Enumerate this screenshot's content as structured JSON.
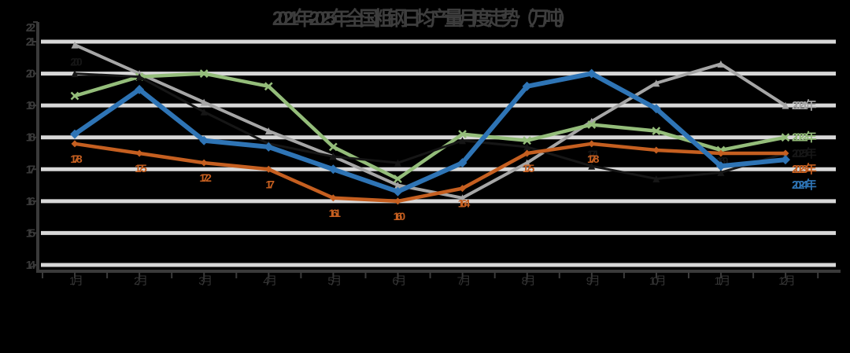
{
  "title": "2021年-2025年全国粗钢日均产量月度走势（万吨）",
  "background": "#000000",
  "axis_color": "#3a3a3a",
  "grid_color": "#d8d8d8",
  "y_axis": {
    "ticks": [
      "2.2",
      "2.1",
      "2.0",
      "1.9",
      "1.8",
      "1.7",
      "1.6",
      "1.5",
      "1.4"
    ]
  },
  "x_axis": {
    "labels": [
      "1月",
      "2月",
      "3月",
      "4月",
      "5月",
      "6月",
      "7月",
      "8月",
      "9月",
      "10月",
      "11月",
      "12月"
    ]
  },
  "chart_data": {
    "type": "line",
    "categories": [
      "1月",
      "2月",
      "3月",
      "4月",
      "5月",
      "6月",
      "7月",
      "8月",
      "9月",
      "10月",
      "11月",
      "12月"
    ],
    "title": "2021年-2025年全国粗钢日均产量月度走势（万吨）",
    "xlabel": "",
    "ylabel": "",
    "ylim": [
      1.4,
      2.2
    ],
    "grid": true,
    "legend_position": "right-edge",
    "series": [
      {
        "name": "2021年",
        "color": "#a6a6a6",
        "marker": "triangle",
        "line_width": 4,
        "label_pos": "below",
        "values": [
          2.09,
          2.0,
          1.91,
          1.82,
          1.74,
          1.65,
          1.61,
          1.72,
          1.85,
          1.97,
          2.03,
          1.9
        ],
        "labels": [
          "",
          "",
          "",
          "",
          "",
          "",
          "",
          "",
          "",
          "",
          "",
          ""
        ]
      },
      {
        "name": "2022年",
        "color": "#94bd7a",
        "marker": "x",
        "line_width": 4.5,
        "label_pos": "below",
        "values": [
          1.93,
          1.99,
          2.0,
          1.96,
          1.77,
          1.67,
          1.81,
          1.79,
          1.84,
          1.82,
          1.76,
          1.8
        ],
        "labels": [
          "",
          "",
          "",
          "",
          "",
          "",
          "",
          "",
          "",
          "",
          "",
          ""
        ]
      },
      {
        "name": "2025年",
        "color": "#161616",
        "marker": "triangle",
        "line_width": 3,
        "label_pos": "above",
        "values": [
          2.0,
          1.99,
          1.88,
          1.78,
          1.74,
          1.72,
          1.79,
          1.77,
          1.71,
          1.67,
          1.69,
          1.75
        ],
        "labels": [
          "2.00",
          "",
          "",
          "",
          "",
          "",
          "",
          "",
          "1.71",
          "",
          "1.69",
          ""
        ]
      },
      {
        "name": "2023年",
        "color": "#c55f20",
        "marker": "diamond",
        "line_width": 4.5,
        "label_pos": "below",
        "values": [
          1.78,
          1.75,
          1.72,
          1.7,
          1.61,
          1.6,
          1.64,
          1.75,
          1.78,
          1.76,
          1.75,
          1.75
        ],
        "labels": [
          "1.78",
          "1.75",
          "1.72",
          "1.7",
          "1.61",
          "1.60",
          "1.64",
          "1.75",
          "1.78",
          "",
          "",
          ""
        ]
      },
      {
        "name": "2024年",
        "color": "#2e74b5",
        "marker": "diamond",
        "line_width": 6,
        "label_pos": "below",
        "values": [
          1.81,
          1.95,
          1.79,
          1.77,
          1.7,
          1.63,
          1.72,
          1.96,
          2.0,
          1.89,
          1.71,
          1.73
        ],
        "labels": [
          "",
          "",
          "",
          "",
          "",
          "",
          "",
          "",
          "",
          "",
          "",
          ""
        ]
      }
    ]
  }
}
